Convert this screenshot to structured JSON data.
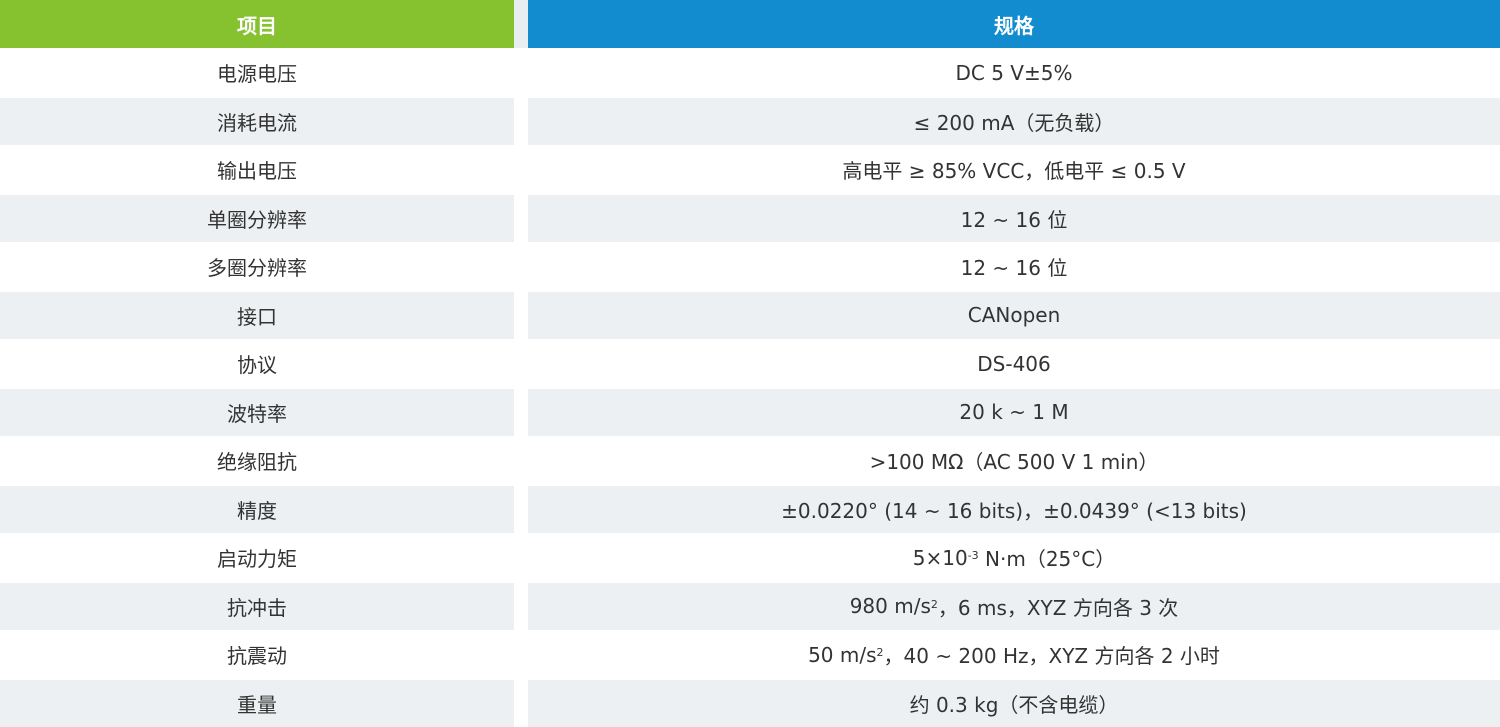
{
  "header": {
    "item": "项目",
    "spec": "规格"
  },
  "colors": {
    "item_header": "#86c12f",
    "spec_header": "#128ccf",
    "alt_row": "#edf0f2"
  },
  "rows": [
    {
      "item": "电源电压",
      "spec": {
        "pre": "DC 5 V±5%"
      }
    },
    {
      "item": "消耗电流",
      "spec": {
        "pre": "≤ 200 mA（无负载）"
      }
    },
    {
      "item": "输出电压",
      "spec": {
        "pre": "高电平 ≥ 85% VCC，低电平 ≤ 0.5 V"
      }
    },
    {
      "item": "单圈分辨率",
      "spec": {
        "pre": "12 ~ 16 位"
      }
    },
    {
      "item": "多圈分辨率",
      "spec": {
        "pre": "12 ~ 16 位"
      }
    },
    {
      "item": "接口",
      "spec": {
        "pre": "CANopen"
      }
    },
    {
      "item": "协议",
      "spec": {
        "pre": "DS-406"
      }
    },
    {
      "item": "波特率",
      "spec": {
        "pre": "20 k ~ 1 M"
      }
    },
    {
      "item": "绝缘阻抗",
      "spec": {
        "pre": ">100 MΩ（AC 500 V 1 min）"
      }
    },
    {
      "item": "精度",
      "spec": {
        "pre": "±0.0220° (14 ~ 16 bits)，±0.0439° (<13 bits)"
      }
    },
    {
      "item": "启动力矩",
      "spec": {
        "pre": "5×10",
        "sup": "-3",
        "post": " N·m（25°C）"
      }
    },
    {
      "item": "抗冲击",
      "spec": {
        "pre": "980 m/s",
        "sup": "2",
        "post": "，6 ms，XYZ 方向各 3 次"
      }
    },
    {
      "item": "抗震动",
      "spec": {
        "pre": "50 m/s",
        "sup": "2",
        "post": "，40 ~ 200 Hz，XYZ 方向各 2 小时"
      }
    },
    {
      "item": "重量",
      "spec": {
        "pre": "约 0.3 kg（不含电缆）"
      }
    }
  ]
}
